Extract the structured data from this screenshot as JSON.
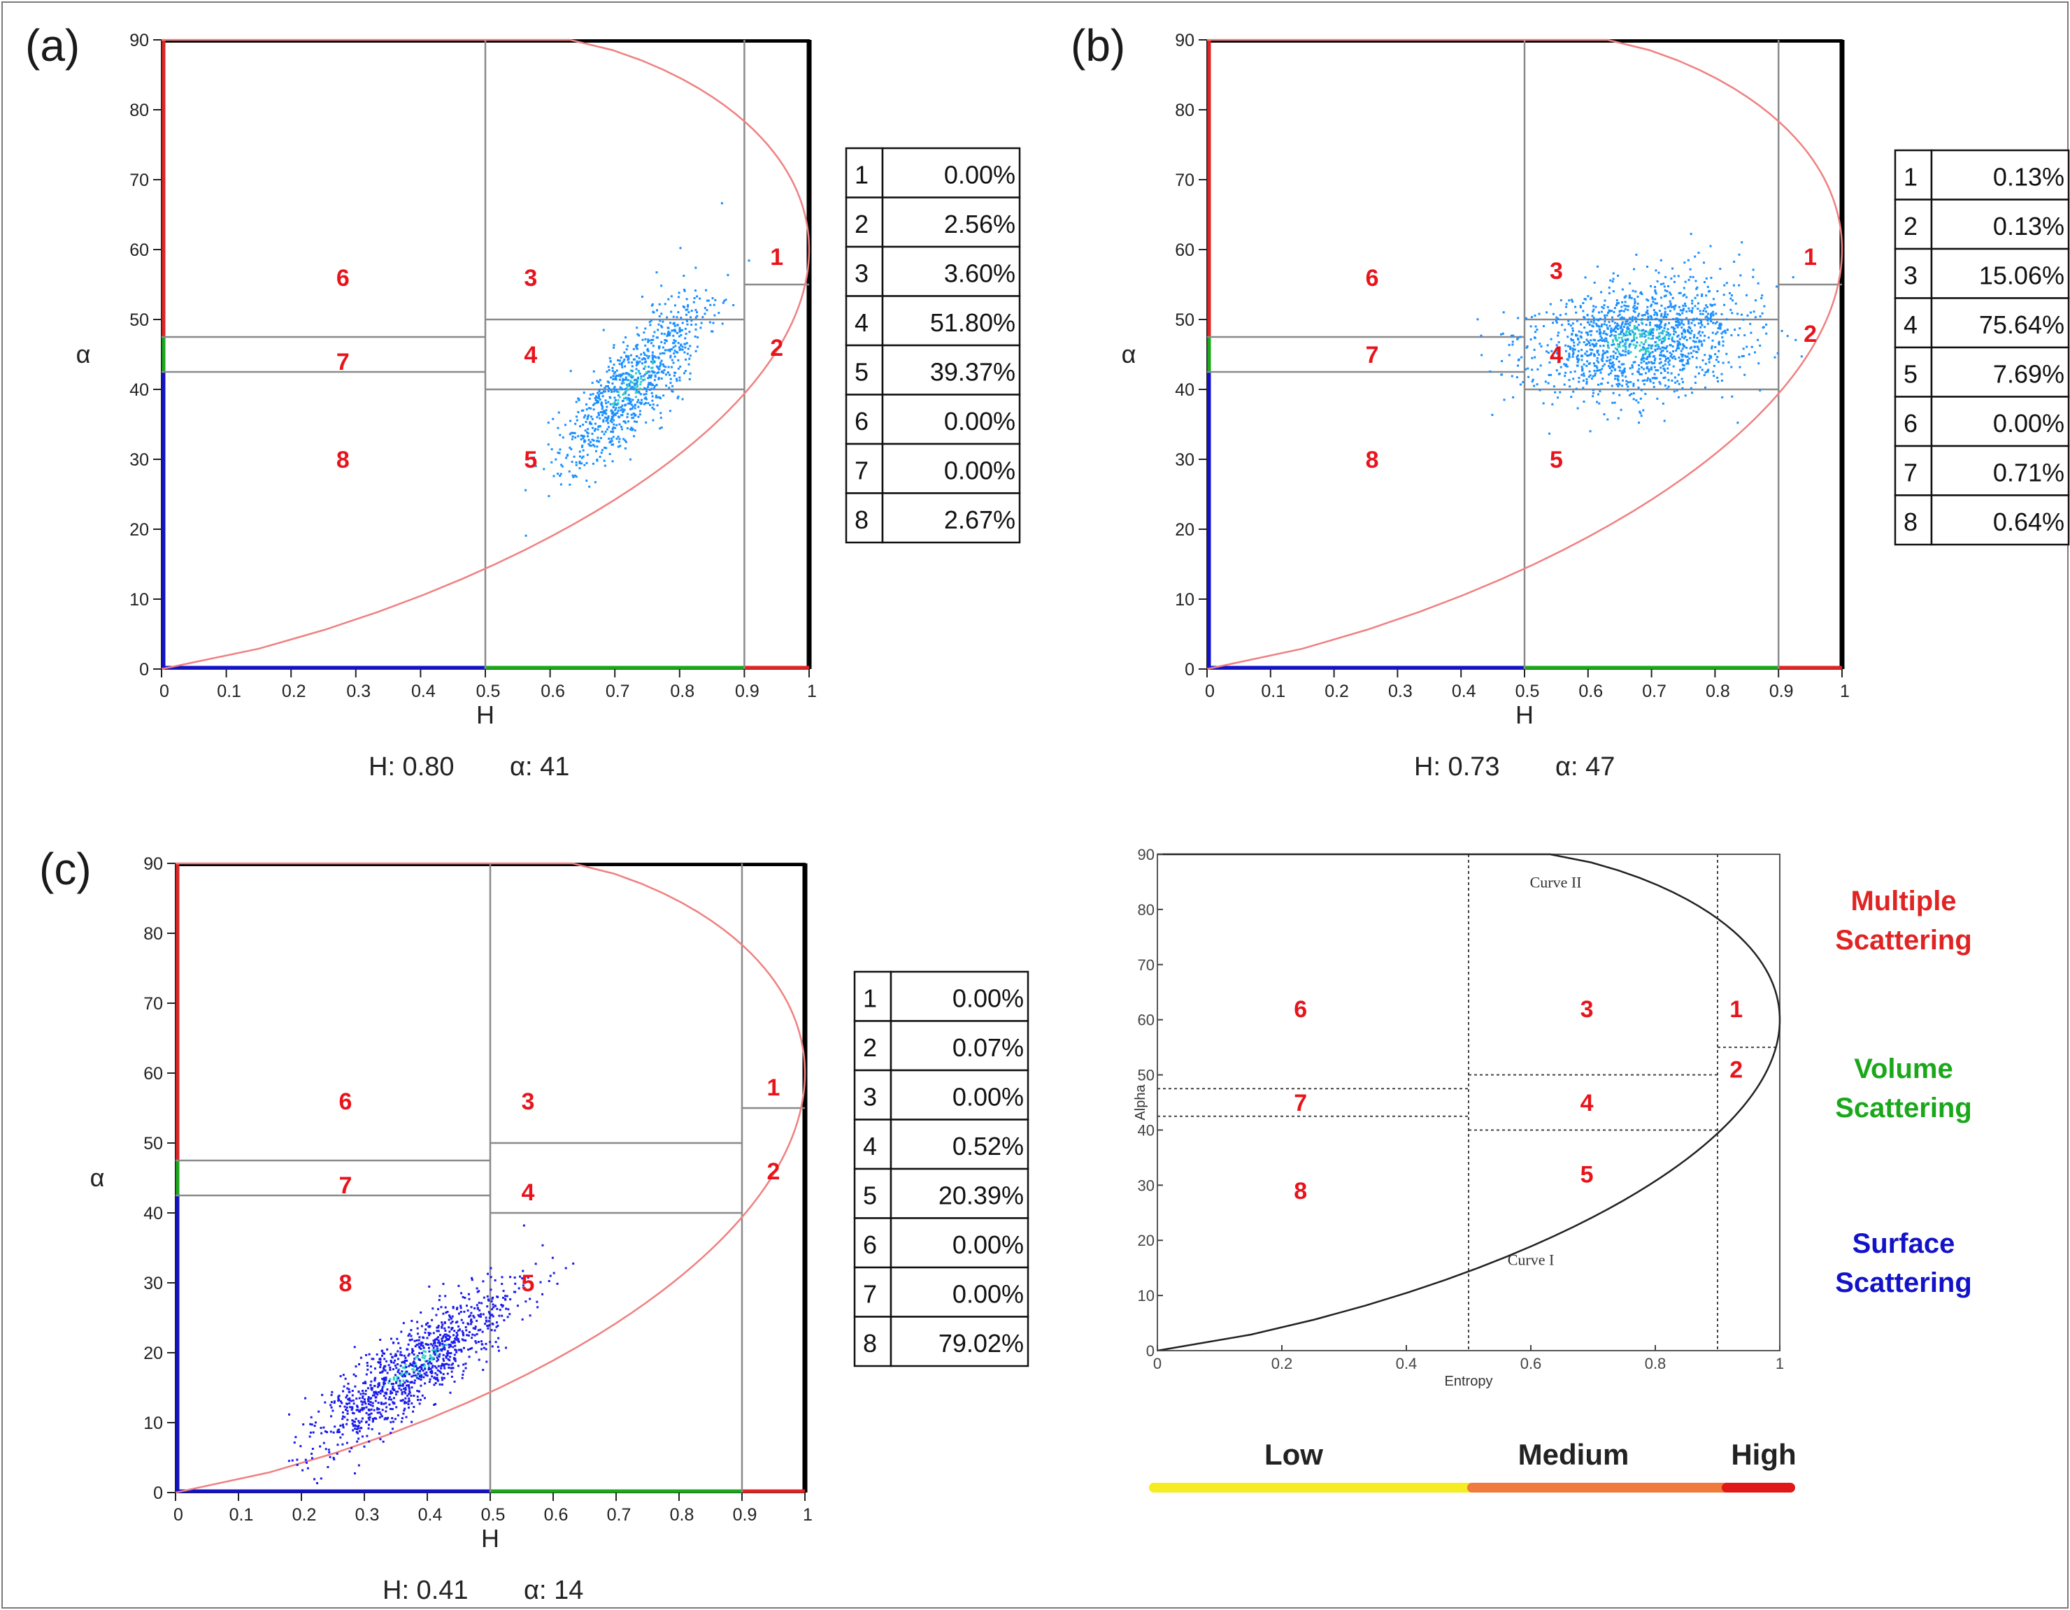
{
  "colors": {
    "zone_label": "#e8141b",
    "boundary_curve": "#f08080",
    "multiple": "#e02424",
    "volume": "#1aa81a",
    "surface": "#1212c8",
    "bar_low": "#f5ec21",
    "bar_medium": "#ef7a3c",
    "bar_high": "#e01818"
  },
  "chart_data": [
    {
      "id": "a",
      "type": "scatter",
      "panel_label": "(a)",
      "xlabel": "H",
      "ylabel": "α",
      "xlim": [
        0,
        1
      ],
      "ylim": [
        0,
        90
      ],
      "xticks": [
        "0",
        "0.1",
        "0.2",
        "0.3",
        "0.4",
        "0.5",
        "0.6",
        "0.7",
        "0.8",
        "0.9",
        "1"
      ],
      "yticks": [
        "0",
        "10",
        "20",
        "30",
        "40",
        "50",
        "60",
        "70",
        "80",
        "90"
      ],
      "zones": [
        {
          "label": "1",
          "x": 0.95,
          "y": 59
        },
        {
          "label": "2",
          "x": 0.95,
          "y": 46
        },
        {
          "label": "3",
          "x": 0.57,
          "y": 56
        },
        {
          "label": "4",
          "x": 0.57,
          "y": 45
        },
        {
          "label": "5",
          "x": 0.57,
          "y": 30
        },
        {
          "label": "6",
          "x": 0.28,
          "y": 56
        },
        {
          "label": "7",
          "x": 0.28,
          "y": 44
        },
        {
          "label": "8",
          "x": 0.28,
          "y": 30
        }
      ],
      "cluster": {
        "center_h": 0.73,
        "center_a": 41,
        "slope": 90,
        "spread_h": 0.055,
        "spread_a": 3.6,
        "h_min": 0.46,
        "h_max": 0.98,
        "count": 900,
        "color": "#1a8fff",
        "core_color": "#2bd0c0",
        "seed": 11
      },
      "summary": {
        "h_label": "H: 0.80",
        "alpha_label": "α: 41"
      },
      "table": [
        {
          "zone": "1",
          "value": "0.00%"
        },
        {
          "zone": "2",
          "value": "2.56%"
        },
        {
          "zone": "3",
          "value": "3.60%"
        },
        {
          "zone": "4",
          "value": "51.80%"
        },
        {
          "zone": "5",
          "value": "39.37%"
        },
        {
          "zone": "6",
          "value": "0.00%"
        },
        {
          "zone": "7",
          "value": "0.00%"
        },
        {
          "zone": "8",
          "value": "2.67%"
        }
      ]
    },
    {
      "id": "b",
      "type": "scatter",
      "panel_label": "(b)",
      "xlabel": "H",
      "ylabel": "α",
      "xlim": [
        0,
        1
      ],
      "ylim": [
        0,
        90
      ],
      "xticks": [
        "0",
        "0.1",
        "0.2",
        "0.3",
        "0.4",
        "0.5",
        "0.6",
        "0.7",
        "0.8",
        "0.9",
        "1"
      ],
      "yticks": [
        "0",
        "10",
        "20",
        "30",
        "40",
        "50",
        "60",
        "70",
        "80",
        "90"
      ],
      "zones": [
        {
          "label": "1",
          "x": 0.95,
          "y": 59
        },
        {
          "label": "2",
          "x": 0.95,
          "y": 48
        },
        {
          "label": "3",
          "x": 0.55,
          "y": 57
        },
        {
          "label": "4",
          "x": 0.55,
          "y": 45
        },
        {
          "label": "5",
          "x": 0.55,
          "y": 30
        },
        {
          "label": "6",
          "x": 0.26,
          "y": 56
        },
        {
          "label": "7",
          "x": 0.26,
          "y": 45
        },
        {
          "label": "8",
          "x": 0.26,
          "y": 30
        }
      ],
      "cluster": {
        "center_h": 0.68,
        "center_a": 47,
        "slope": 12,
        "spread_h": 0.085,
        "spread_a": 4.0,
        "h_min": 0.39,
        "h_max": 0.98,
        "count": 1400,
        "color": "#1a8fff",
        "core_color": "#2bd0c0",
        "seed": 23
      },
      "summary": {
        "h_label": "H: 0.73",
        "alpha_label": "α: 47"
      },
      "table": [
        {
          "zone": "1",
          "value": "0.13%"
        },
        {
          "zone": "2",
          "value": "0.13%"
        },
        {
          "zone": "3",
          "value": "15.06%"
        },
        {
          "zone": "4",
          "value": "75.64%"
        },
        {
          "zone": "5",
          "value": "7.69%"
        },
        {
          "zone": "6",
          "value": "0.00%"
        },
        {
          "zone": "7",
          "value": "0.71%"
        },
        {
          "zone": "8",
          "value": "0.64%"
        }
      ]
    },
    {
      "id": "c",
      "type": "scatter",
      "panel_label": "(c)",
      "xlabel": "H",
      "ylabel": "α",
      "xlim": [
        0,
        1
      ],
      "ylim": [
        0,
        90
      ],
      "xticks": [
        "0",
        "0.1",
        "0.2",
        "0.3",
        "0.4",
        "0.5",
        "0.6",
        "0.7",
        "0.8",
        "0.9",
        "1"
      ],
      "yticks": [
        "0",
        "10",
        "20",
        "30",
        "40",
        "50",
        "60",
        "70",
        "80",
        "90"
      ],
      "zones": [
        {
          "label": "1",
          "x": 0.95,
          "y": 58
        },
        {
          "label": "2",
          "x": 0.95,
          "y": 46
        },
        {
          "label": "3",
          "x": 0.56,
          "y": 56
        },
        {
          "label": "4",
          "x": 0.56,
          "y": 43
        },
        {
          "label": "5",
          "x": 0.56,
          "y": 30
        },
        {
          "label": "6",
          "x": 0.27,
          "y": 56
        },
        {
          "label": "7",
          "x": 0.27,
          "y": 44
        },
        {
          "label": "8",
          "x": 0.27,
          "y": 30
        }
      ],
      "cluster": {
        "center_h": 0.38,
        "center_a": 18,
        "slope": 60,
        "spread_h": 0.08,
        "spread_a": 3.0,
        "h_min": 0.18,
        "h_max": 0.75,
        "count": 1100,
        "color": "#1a1aee",
        "core_color": "#2bd0c0",
        "seed": 37
      },
      "summary": {
        "h_label": "H: 0.41",
        "alpha_label": "α: 14"
      },
      "table": [
        {
          "zone": "1",
          "value": "0.00%"
        },
        {
          "zone": "2",
          "value": "0.07%"
        },
        {
          "zone": "3",
          "value": "0.00%"
        },
        {
          "zone": "4",
          "value": "0.52%"
        },
        {
          "zone": "5",
          "value": "20.39%"
        },
        {
          "zone": "6",
          "value": "0.00%"
        },
        {
          "zone": "7",
          "value": "0.00%"
        },
        {
          "zone": "8",
          "value": "79.02%"
        }
      ]
    },
    {
      "id": "ref",
      "type": "line",
      "xlabel": "Entropy",
      "ylabel": "Alpha",
      "xlim": [
        0,
        1
      ],
      "ylim": [
        0,
        90
      ],
      "xticks": [
        "0",
        "0.2",
        "0.4",
        "0.6",
        "0.8",
        "1"
      ],
      "xtick_values": [
        0,
        0.2,
        0.4,
        0.6,
        0.8,
        1
      ],
      "yticks": [
        "0",
        "10",
        "20",
        "30",
        "40",
        "50",
        "60",
        "70",
        "80",
        "90"
      ],
      "curve_labels": [
        "Curve II",
        "Curve I"
      ],
      "zones": [
        {
          "label": "1",
          "x": 0.93,
          "y": 62
        },
        {
          "label": "2",
          "x": 0.93,
          "y": 51
        },
        {
          "label": "3",
          "x": 0.69,
          "y": 62
        },
        {
          "label": "4",
          "x": 0.69,
          "y": 45
        },
        {
          "label": "5",
          "x": 0.69,
          "y": 32
        },
        {
          "label": "6",
          "x": 0.23,
          "y": 62
        },
        {
          "label": "7",
          "x": 0.23,
          "y": 45
        },
        {
          "label": "8",
          "x": 0.23,
          "y": 29
        }
      ],
      "legend": [
        {
          "line1": "Multiple",
          "line2": "Scattering",
          "color": "#e02424"
        },
        {
          "line1": "Volume",
          "line2": "Scattering",
          "color": "#1aa81a"
        },
        {
          "line1": "Surface",
          "line2": "Scattering",
          "color": "#1212c8"
        }
      ],
      "entropy_bar": [
        {
          "label": "Low",
          "from": 0,
          "to": 0.5,
          "color": "#f5ec21"
        },
        {
          "label": "Medium",
          "from": 0.5,
          "to": 0.9,
          "color": "#ef7a3c"
        },
        {
          "label": "High",
          "from": 0.9,
          "to": 1.0,
          "color": "#e01818"
        }
      ]
    }
  ]
}
